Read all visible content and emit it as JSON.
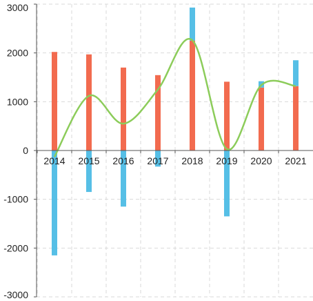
{
  "chart_data": {
    "type": "bar",
    "title": "",
    "xlabel": "",
    "ylabel": "",
    "categories": [
      "2014",
      "2015",
      "2016",
      "2017",
      "2018",
      "2019",
      "2020",
      "2021"
    ],
    "ylim": [
      -3000,
      3000
    ],
    "yticks": [
      3000,
      2000,
      1000,
      0,
      -1000,
      -2000,
      -3000
    ],
    "ytick_labels": [
      "3000",
      "2000",
      "1000",
      "0",
      "-1000",
      "-2000",
      "-3000"
    ],
    "grid": true,
    "legend": "none",
    "series": [
      {
        "kind": "bar",
        "color": "#f26b4f",
        "values": [
          2020,
          1970,
          1700,
          1545,
          2250,
          1410,
          1290,
          1320
        ]
      },
      {
        "kind": "bar",
        "color": "#56bfe6",
        "values": [
          -2150,
          -850,
          -1150,
          -330,
          680,
          -1350,
          130,
          530
        ]
      },
      {
        "kind": "line",
        "smooth": true,
        "color": "#8ccc5a",
        "values": [
          -130,
          1120,
          550,
          1250,
          2260,
          30,
          1340,
          1320
        ]
      }
    ]
  }
}
